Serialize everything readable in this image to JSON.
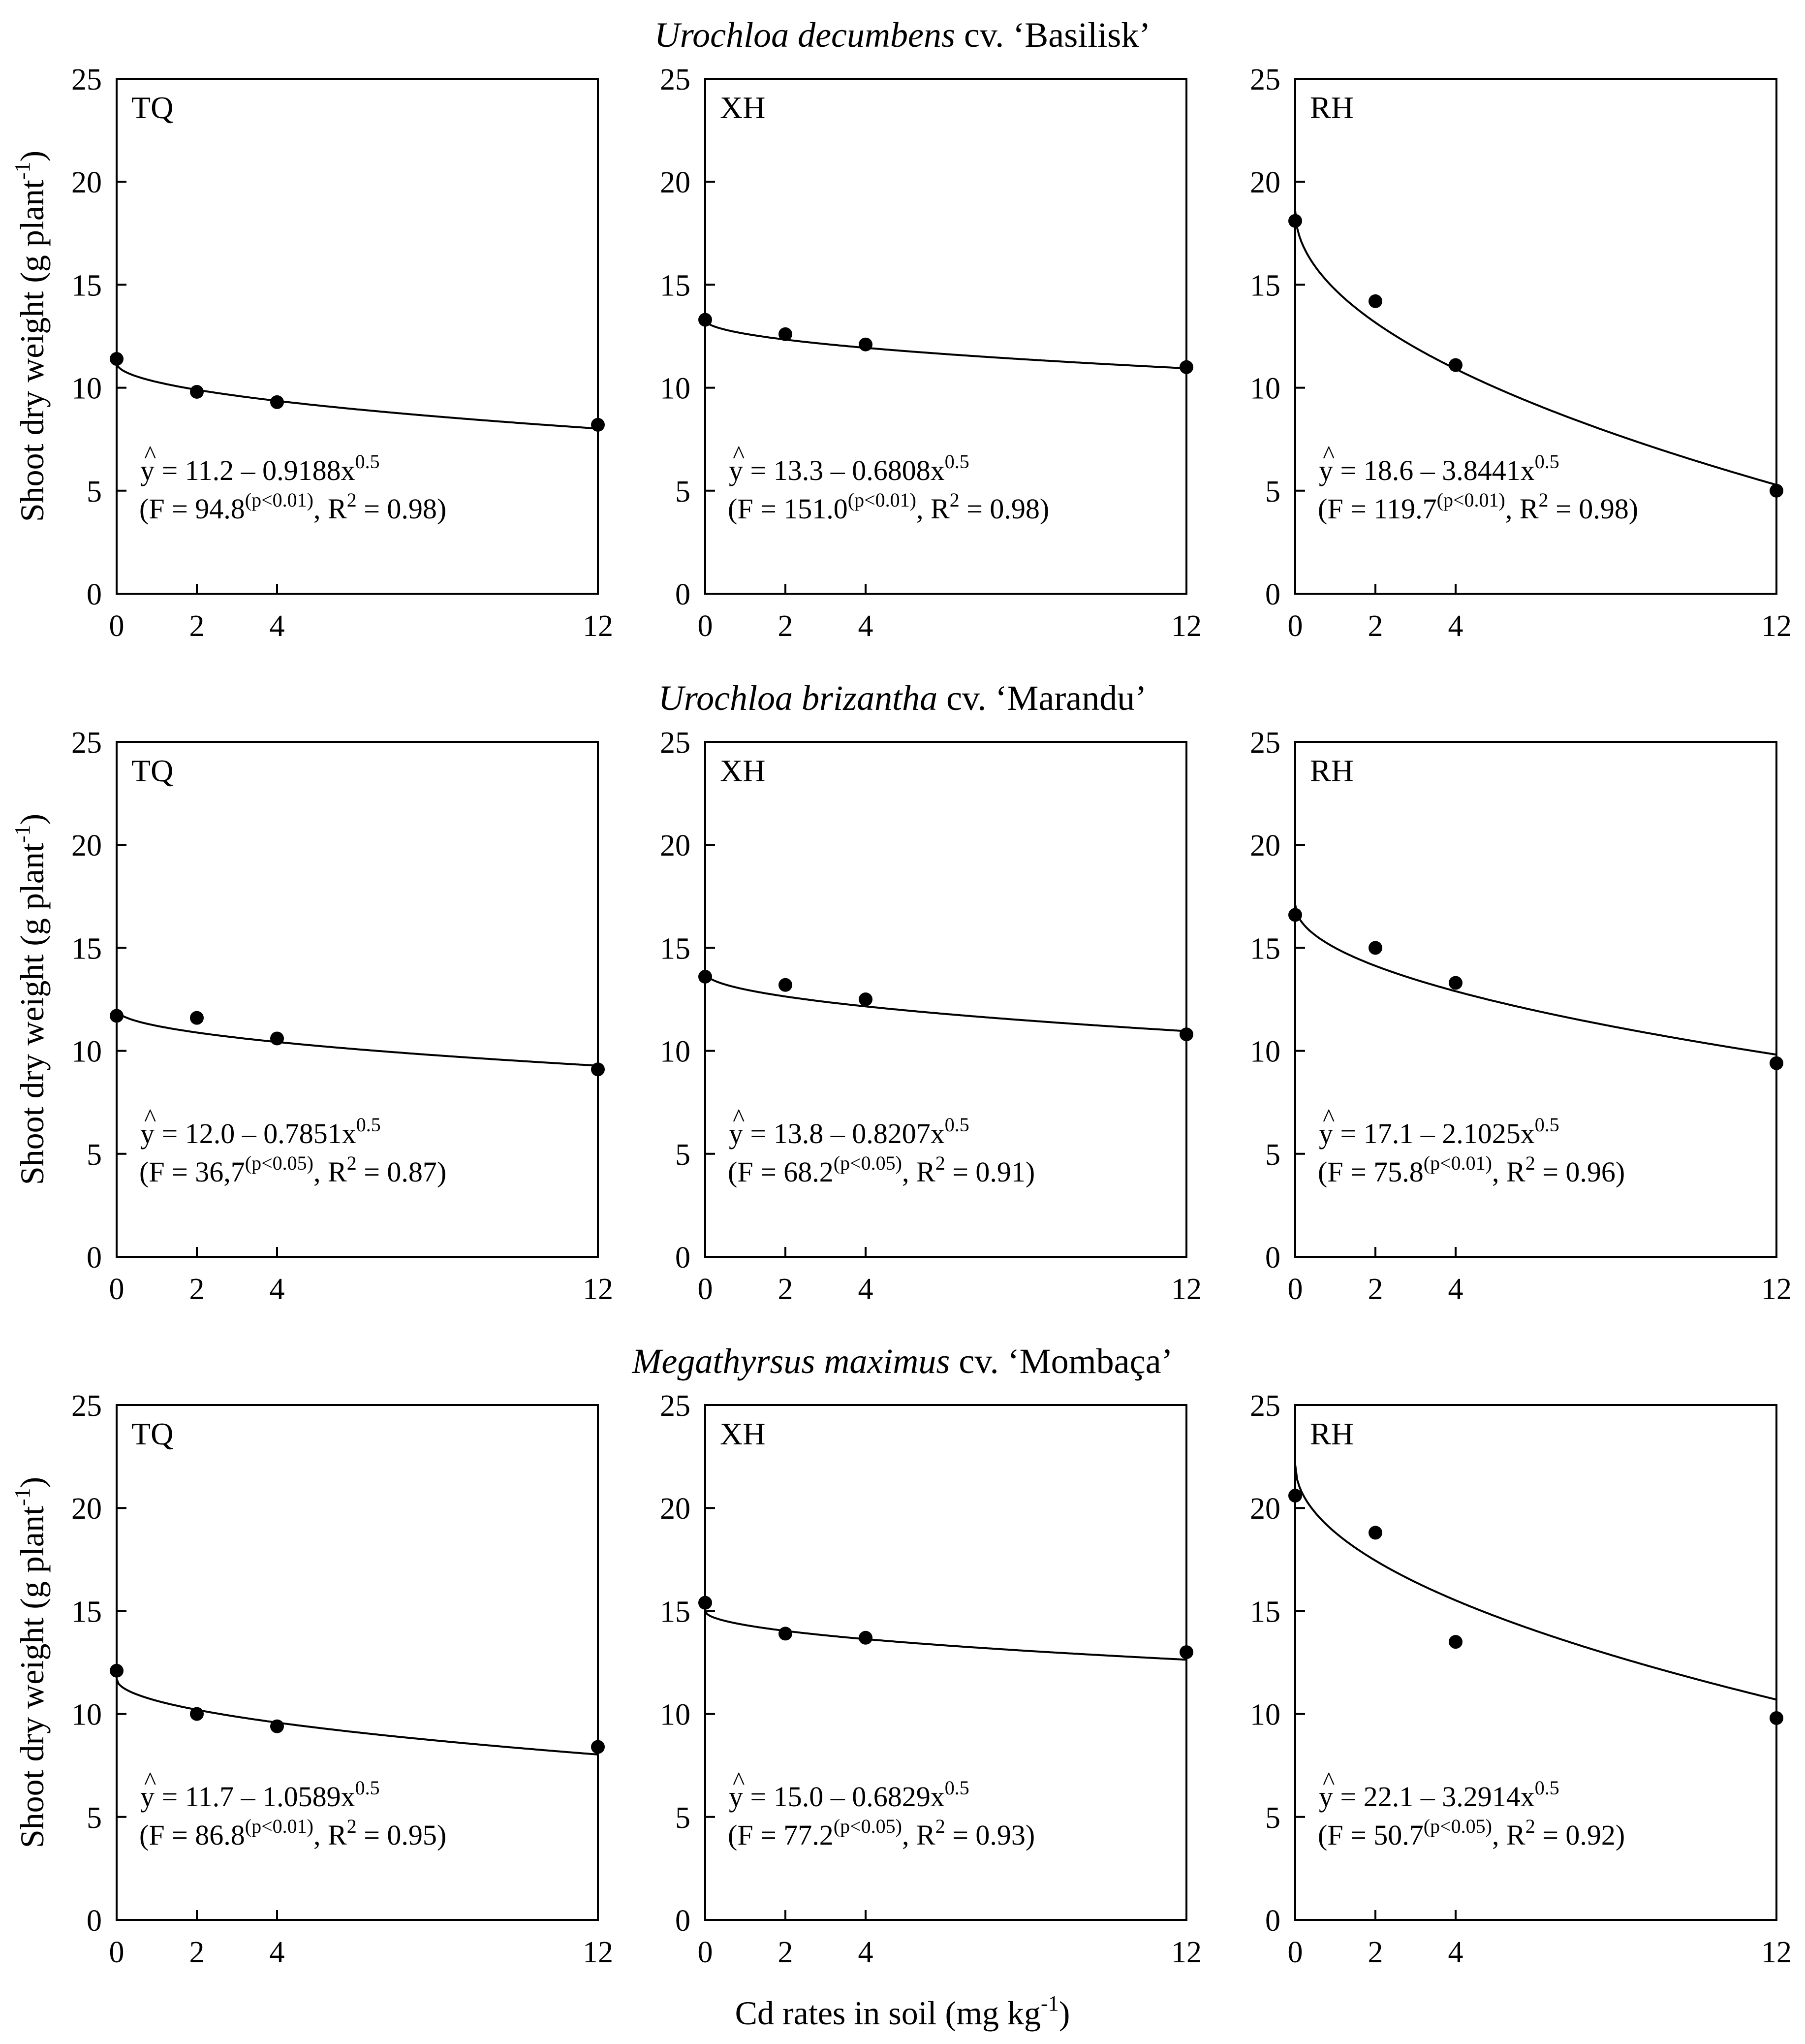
{
  "figure": {
    "row_titles": [
      {
        "genus": "Urochloa decumbens",
        "cultivar": " cv. ‘Basilisk’"
      },
      {
        "genus": "Urochloa brizantha",
        "cultivar": " cv. ‘Marandu’"
      },
      {
        "genus": "Megathyrsus maximus",
        "cultivar": " cv. ‘Mombaça’"
      }
    ],
    "xlabel": {
      "main": "Cd rates in soil (mg kg",
      "sup": "-1",
      "close": ")"
    },
    "ylabels": [
      {
        "main": "Shoot dry weight (g plant",
        "sup": "-1",
        "close": ")"
      },
      {
        "main": "Shoot dry weight (g plant",
        "sup": "-1",
        "close": ")"
      },
      {
        "main": "Shoot dry weight  (g plant",
        "sup": "-1",
        "close": ")"
      }
    ]
  },
  "chart_data": [
    {
      "type": "scatter",
      "panel": "TQ",
      "species": "Urochloa decumbens cv. ‘Basilisk’",
      "x": [
        0,
        2,
        4,
        12
      ],
      "y": [
        11.4,
        9.8,
        9.3,
        8.2
      ],
      "fit": {
        "a": 11.2,
        "b": 0.9188
      },
      "equation": {
        "a_text": "11.2",
        "b_text": "0.9188",
        "F": "94.8",
        "p": "p<0.01",
        "R2": "0.98"
      },
      "xticks": [
        0,
        2,
        4,
        12
      ],
      "yticks": [
        0,
        5,
        10,
        15,
        20,
        25
      ],
      "xlim": [
        0,
        12
      ],
      "ylim": [
        0,
        25
      ]
    },
    {
      "type": "scatter",
      "panel": "XH",
      "species": "Urochloa decumbens cv. ‘Basilisk’",
      "x": [
        0,
        2,
        4,
        12
      ],
      "y": [
        13.3,
        12.6,
        12.1,
        11.0
      ],
      "fit": {
        "a": 13.3,
        "b": 0.6808
      },
      "equation": {
        "a_text": "13.3",
        "b_text": "0.6808",
        "F": "151.0",
        "p": "p<0.01",
        "R2": "0.98"
      },
      "xticks": [
        0,
        2,
        4,
        12
      ],
      "yticks": [
        0,
        5,
        10,
        15,
        20,
        25
      ],
      "xlim": [
        0,
        12
      ],
      "ylim": [
        0,
        25
      ]
    },
    {
      "type": "scatter",
      "panel": "RH",
      "species": "Urochloa decumbens cv. ‘Basilisk’",
      "x": [
        0,
        2,
        4,
        12
      ],
      "y": [
        18.1,
        14.2,
        11.1,
        5.0
      ],
      "fit": {
        "a": 18.6,
        "b": 3.8441
      },
      "equation": {
        "a_text": "18.6",
        "b_text": "3.8441",
        "F": "119.7",
        "p": "p<0.01",
        "R2": "0.98"
      },
      "xticks": [
        0,
        2,
        4,
        12
      ],
      "yticks": [
        0,
        5,
        10,
        15,
        20,
        25
      ],
      "xlim": [
        0,
        12
      ],
      "ylim": [
        0,
        25
      ]
    },
    {
      "type": "scatter",
      "panel": "TQ",
      "species": "Urochloa brizantha cv. ‘Marandu’",
      "x": [
        0,
        2,
        4,
        12
      ],
      "y": [
        11.7,
        11.6,
        10.6,
        9.1
      ],
      "fit": {
        "a": 12.0,
        "b": 0.7851
      },
      "equation": {
        "a_text": "12.0",
        "b_text": "0.7851",
        "F": "36,7",
        "p": "p<0.05",
        "R2": "0.87"
      },
      "xticks": [
        0,
        2,
        4,
        12
      ],
      "yticks": [
        0,
        5,
        10,
        15,
        20,
        25
      ],
      "xlim": [
        0,
        12
      ],
      "ylim": [
        0,
        25
      ]
    },
    {
      "type": "scatter",
      "panel": "XH",
      "species": "Urochloa brizantha cv. ‘Marandu’",
      "x": [
        0,
        2,
        4,
        12
      ],
      "y": [
        13.6,
        13.2,
        12.5,
        10.8
      ],
      "fit": {
        "a": 13.8,
        "b": 0.8207
      },
      "equation": {
        "a_text": "13.8",
        "b_text": "0.8207",
        "F": "68.2",
        "p": "p<0.05",
        "R2": "0.91"
      },
      "xticks": [
        0,
        2,
        4,
        12
      ],
      "yticks": [
        0,
        5,
        10,
        15,
        20,
        25
      ],
      "xlim": [
        0,
        12
      ],
      "ylim": [
        0,
        25
      ]
    },
    {
      "type": "scatter",
      "panel": "RH",
      "species": "Urochloa brizantha cv. ‘Marandu’",
      "x": [
        0,
        2,
        4,
        12
      ],
      "y": [
        16.6,
        15.0,
        13.3,
        9.4
      ],
      "fit": {
        "a": 17.1,
        "b": 2.1025
      },
      "equation": {
        "a_text": "17.1",
        "b_text": "2.1025",
        "F": "75.8",
        "p": "p<0.01",
        "R2": "0.96"
      },
      "xticks": [
        0,
        2,
        4,
        12
      ],
      "yticks": [
        0,
        5,
        10,
        15,
        20,
        25
      ],
      "xlim": [
        0,
        12
      ],
      "ylim": [
        0,
        25
      ]
    },
    {
      "type": "scatter",
      "panel": "TQ",
      "species": "Megathyrsus maximus cv. ‘Mombaça’",
      "x": [
        0,
        2,
        4,
        12
      ],
      "y": [
        12.1,
        10.0,
        9.4,
        8.4
      ],
      "fit": {
        "a": 11.7,
        "b": 1.0589
      },
      "equation": {
        "a_text": "11.7",
        "b_text": "1.0589",
        "F": "86.8",
        "p": "p<0.01",
        "R2": "0.95"
      },
      "xticks": [
        0,
        2,
        4,
        12
      ],
      "yticks": [
        0,
        5,
        10,
        15,
        20,
        25
      ],
      "xlim": [
        0,
        12
      ],
      "ylim": [
        0,
        25
      ]
    },
    {
      "type": "scatter",
      "panel": "XH",
      "species": "Megathyrsus maximus cv. ‘Mombaça’",
      "x": [
        0,
        2,
        4,
        12
      ],
      "y": [
        15.4,
        13.9,
        13.7,
        13.0
      ],
      "fit": {
        "a": 15.0,
        "b": 0.6829
      },
      "equation": {
        "a_text": "15.0",
        "b_text": "0.6829",
        "F": "77.2",
        "p": "p<0.05",
        "R2": "0.93"
      },
      "xticks": [
        0,
        2,
        4,
        12
      ],
      "yticks": [
        0,
        5,
        10,
        15,
        20,
        25
      ],
      "xlim": [
        0,
        12
      ],
      "ylim": [
        0,
        25
      ]
    },
    {
      "type": "scatter",
      "panel": "RH",
      "species": "Megathyrsus maximus cv. ‘Mombaça’",
      "x": [
        0,
        2,
        4,
        12
      ],
      "y": [
        20.6,
        18.8,
        13.5,
        9.8
      ],
      "fit": {
        "a": 22.1,
        "b": 3.2914
      },
      "equation": {
        "a_text": "22.1",
        "b_text": "3.2914",
        "F": "50.7",
        "p": "p<0.05",
        "R2": "0.92"
      },
      "xticks": [
        0,
        2,
        4,
        12
      ],
      "yticks": [
        0,
        5,
        10,
        15,
        20,
        25
      ],
      "xlim": [
        0,
        12
      ],
      "ylim": [
        0,
        25
      ]
    }
  ]
}
